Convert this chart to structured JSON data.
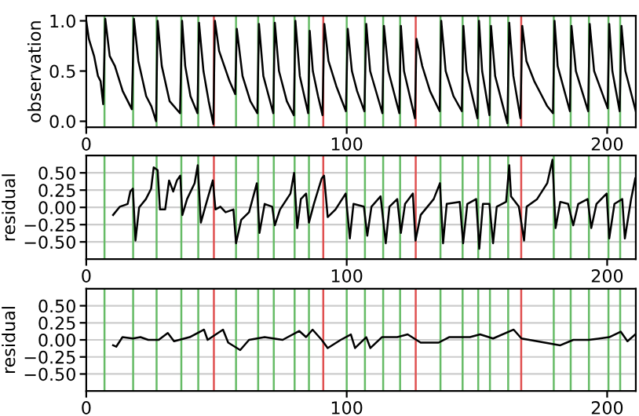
{
  "chart_data": [
    {
      "type": "line",
      "ylabel": "observation",
      "grid": false,
      "marker": "none",
      "line_style": "solid",
      "xlim": [
        0,
        211
      ],
      "xticks": [
        0,
        100,
        200
      ],
      "ylim": [
        -0.06,
        1.05
      ],
      "yticks": [
        {
          "value": 0,
          "label": "0.0"
        },
        {
          "value": 0.5,
          "label": "0.5"
        },
        {
          "value": 1,
          "label": "1.0"
        }
      ],
      "series": [
        {
          "color": "#000000",
          "x": [
            0,
            1,
            3,
            4.5,
            5.5,
            6.5,
            7.3,
            9,
            11,
            14,
            17.5,
            18.3,
            20,
            23,
            25,
            26.8,
            27.4,
            29,
            32,
            36,
            36.8,
            38,
            40,
            42.7,
            43.3,
            45,
            47,
            48.8,
            49.4,
            51,
            53,
            55,
            57.2,
            57.8,
            60,
            63,
            65.7,
            66.3,
            68,
            71.8,
            72.4,
            74,
            77,
            79.7,
            80.3,
            82,
            85.2,
            85.8,
            87,
            89,
            90.7,
            91.4,
            93,
            96,
            99.7,
            100.4,
            102,
            104,
            106.8,
            107.5,
            109,
            113.7,
            114.3,
            116,
            120.2,
            120.8,
            122,
            126.2,
            126.8,
            129,
            132,
            135.7,
            136.3,
            138,
            141,
            144.2,
            144.8,
            146,
            150.2,
            150.8,
            152,
            154.8,
            155.4,
            157,
            161.7,
            162.4,
            164,
            166.7,
            167.4,
            169,
            172,
            175,
            177,
            179.2,
            179.8,
            181,
            185.7,
            186.3,
            188,
            192.7,
            193.3,
            195,
            200.2,
            200.8,
            202,
            204.8,
            205.5,
            207,
            211
          ],
          "values": [
            1.0,
            0.82,
            0.65,
            0.45,
            0.4,
            0.17,
            1.02,
            0.65,
            0.55,
            0.3,
            0.12,
            1.02,
            0.6,
            0.25,
            0.15,
            0.0,
            1.0,
            0.55,
            0.2,
            0.08,
            1.0,
            0.55,
            0.25,
            0.08,
            0.98,
            0.5,
            0.2,
            -0.03,
            1.0,
            0.7,
            0.55,
            0.4,
            0.27,
            0.92,
            0.45,
            0.2,
            0.08,
            0.97,
            0.45,
            0.08,
            0.98,
            0.5,
            0.2,
            0.06,
            1.0,
            0.45,
            0.08,
            0.9,
            0.5,
            0.25,
            0.06,
            0.97,
            0.6,
            0.35,
            0.1,
            0.92,
            0.5,
            0.3,
            0.1,
            0.97,
            0.5,
            0.08,
            0.95,
            0.5,
            0.08,
            0.95,
            0.5,
            0.03,
            0.82,
            0.55,
            0.3,
            0.1,
            1.0,
            0.5,
            0.25,
            0.1,
            0.95,
            0.5,
            0.03,
            1.0,
            0.5,
            0.06,
            0.95,
            0.45,
            -0.02,
            0.98,
            0.45,
            0.03,
            0.95,
            0.6,
            0.4,
            0.25,
            0.15,
            0.08,
            1.0,
            0.55,
            0.1,
            0.95,
            0.5,
            0.1,
            0.97,
            0.5,
            0.13,
            0.97,
            0.5,
            0.1,
            0.95,
            0.5,
            0.1
          ]
        }
      ],
      "ref_lines": [
        {
          "axis": "x",
          "value": 7,
          "color": "#66bb66"
        },
        {
          "axis": "x",
          "value": 18,
          "color": "#66bb66"
        },
        {
          "axis": "x",
          "value": 27,
          "color": "#66bb66"
        },
        {
          "axis": "x",
          "value": 36.5,
          "color": "#66bb66"
        },
        {
          "axis": "x",
          "value": 43,
          "color": "#66bb66"
        },
        {
          "axis": "x",
          "value": 49,
          "color": "#e05050"
        },
        {
          "axis": "x",
          "value": 57.5,
          "color": "#66bb66"
        },
        {
          "axis": "x",
          "value": 66,
          "color": "#66bb66"
        },
        {
          "axis": "x",
          "value": 72,
          "color": "#66bb66"
        },
        {
          "axis": "x",
          "value": 80,
          "color": "#66bb66"
        },
        {
          "axis": "x",
          "value": 85.5,
          "color": "#66bb66"
        },
        {
          "axis": "x",
          "value": 91,
          "color": "#e05050"
        },
        {
          "axis": "x",
          "value": 100,
          "color": "#66bb66"
        },
        {
          "axis": "x",
          "value": 107,
          "color": "#66bb66"
        },
        {
          "axis": "x",
          "value": 114,
          "color": "#66bb66"
        },
        {
          "axis": "x",
          "value": 120.5,
          "color": "#66bb66"
        },
        {
          "axis": "x",
          "value": 126.5,
          "color": "#e05050"
        },
        {
          "axis": "x",
          "value": 136,
          "color": "#66bb66"
        },
        {
          "axis": "x",
          "value": 144.5,
          "color": "#66bb66"
        },
        {
          "axis": "x",
          "value": 150.5,
          "color": "#66bb66"
        },
        {
          "axis": "x",
          "value": 155,
          "color": "#66bb66"
        },
        {
          "axis": "x",
          "value": 162,
          "color": "#66bb66"
        },
        {
          "axis": "x",
          "value": 167,
          "color": "#e05050"
        },
        {
          "axis": "x",
          "value": 179.5,
          "color": "#66bb66"
        },
        {
          "axis": "x",
          "value": 186,
          "color": "#66bb66"
        },
        {
          "axis": "x",
          "value": 193,
          "color": "#66bb66"
        },
        {
          "axis": "x",
          "value": 200.5,
          "color": "#66bb66"
        },
        {
          "axis": "x",
          "value": 205,
          "color": "#66bb66"
        }
      ]
    },
    {
      "type": "line",
      "ylabel": "residual",
      "grid": "y",
      "marker": "none",
      "line_style": "solid",
      "xlim": [
        0,
        211
      ],
      "xticks": [
        0,
        100,
        200
      ],
      "ylim": [
        -0.75,
        0.75
      ],
      "yticks": [
        {
          "value": 0.5,
          "label": "0.50"
        },
        {
          "value": 0.25,
          "label": "0.25"
        },
        {
          "value": 0,
          "label": "0.00"
        },
        {
          "value": -0.25,
          "label": "−0.25"
        },
        {
          "value": -0.5,
          "label": "−0.50"
        }
      ],
      "series": [
        {
          "color": "#000000",
          "x": [
            10.3,
            12.9,
            15.9,
            16.9,
            17.9,
            18.9,
            20.3,
            22.9,
            24.9,
            25.9,
            27.4,
            28.3,
            30.3,
            31.8,
            33.4,
            34.8,
            36.1,
            36.9,
            38.7,
            41.6,
            42.8,
            44,
            46,
            48.6,
            49.6,
            51.5,
            53.5,
            56.5,
            57.5,
            59.5,
            62.5,
            65.5,
            66.5,
            68.5,
            71.4,
            72.4,
            74.4,
            78.4,
            79.8,
            81,
            82.4,
            84.4,
            85.5,
            87.4,
            90.4,
            91.3,
            92.7,
            95.7,
            99.6,
            101.2,
            102.6,
            106.6,
            107.9,
            109.5,
            113,
            115,
            116.4,
            119.4,
            120.8,
            122.4,
            125.4,
            126.4,
            128.4,
            133.4,
            135.8,
            137,
            138.4,
            143.4,
            144.7,
            146.3,
            149.7,
            150.9,
            152.3,
            154.8,
            156.2,
            157.6,
            161.2,
            162.4,
            163.1,
            166.1,
            168.1,
            169.1,
            173.1,
            177,
            179,
            180.2,
            182,
            185,
            187,
            188.9,
            192.5,
            193.9,
            195.9,
            199.8,
            200.8,
            202.8,
            205.8,
            206.8,
            209.2,
            210.8
          ],
          "values": [
            -0.11,
            0.01,
            0.05,
            0.23,
            0.27,
            -0.48,
            0.0,
            0.12,
            0.27,
            0.58,
            0.54,
            -0.03,
            -0.03,
            0.39,
            0.23,
            0.39,
            0.46,
            -0.11,
            0.12,
            0.35,
            0.61,
            -0.22,
            0.05,
            0.39,
            -0.03,
            0.01,
            -0.07,
            -0.03,
            -0.52,
            -0.18,
            -0.07,
            0.35,
            -0.37,
            0.05,
            0.01,
            -0.26,
            -0.03,
            0.2,
            0.5,
            -0.3,
            0.12,
            0.2,
            -0.22,
            0.05,
            0.42,
            0.46,
            -0.14,
            -0.03,
            0.2,
            -0.45,
            0.05,
            0.01,
            -0.41,
            0.01,
            0.16,
            -0.52,
            0.01,
            0.12,
            -0.37,
            0.05,
            0.2,
            -0.48,
            -0.11,
            0.12,
            0.35,
            -0.52,
            0.05,
            0.08,
            -0.52,
            0.05,
            0.12,
            -0.6,
            0.05,
            0.05,
            -0.52,
            0.01,
            0.08,
            0.61,
            0.16,
            0.01,
            -0.48,
            0.01,
            0.12,
            0.35,
            0.69,
            -0.3,
            0.08,
            0.05,
            -0.26,
            0.05,
            0.12,
            -0.3,
            0.05,
            0.2,
            -0.45,
            0.05,
            0.12,
            -0.45,
            0.12,
            0.42
          ]
        }
      ],
      "ref_lines": [
        {
          "axis": "x",
          "value": 7,
          "color": "#66bb66"
        },
        {
          "axis": "x",
          "value": 18,
          "color": "#66bb66"
        },
        {
          "axis": "x",
          "value": 27,
          "color": "#66bb66"
        },
        {
          "axis": "x",
          "value": 36.5,
          "color": "#66bb66"
        },
        {
          "axis": "x",
          "value": 43,
          "color": "#66bb66"
        },
        {
          "axis": "x",
          "value": 49,
          "color": "#e05050"
        },
        {
          "axis": "x",
          "value": 57.5,
          "color": "#66bb66"
        },
        {
          "axis": "x",
          "value": 66,
          "color": "#66bb66"
        },
        {
          "axis": "x",
          "value": 72,
          "color": "#66bb66"
        },
        {
          "axis": "x",
          "value": 80,
          "color": "#66bb66"
        },
        {
          "axis": "x",
          "value": 85.5,
          "color": "#66bb66"
        },
        {
          "axis": "x",
          "value": 91,
          "color": "#e05050"
        },
        {
          "axis": "x",
          "value": 100,
          "color": "#66bb66"
        },
        {
          "axis": "x",
          "value": 107,
          "color": "#66bb66"
        },
        {
          "axis": "x",
          "value": 114,
          "color": "#66bb66"
        },
        {
          "axis": "x",
          "value": 120.5,
          "color": "#66bb66"
        },
        {
          "axis": "x",
          "value": 126.5,
          "color": "#e05050"
        },
        {
          "axis": "x",
          "value": 136,
          "color": "#66bb66"
        },
        {
          "axis": "x",
          "value": 144.5,
          "color": "#66bb66"
        },
        {
          "axis": "x",
          "value": 150.5,
          "color": "#66bb66"
        },
        {
          "axis": "x",
          "value": 155,
          "color": "#66bb66"
        },
        {
          "axis": "x",
          "value": 162,
          "color": "#66bb66"
        },
        {
          "axis": "x",
          "value": 167,
          "color": "#e05050"
        },
        {
          "axis": "x",
          "value": 179.5,
          "color": "#66bb66"
        },
        {
          "axis": "x",
          "value": 186,
          "color": "#66bb66"
        },
        {
          "axis": "x",
          "value": 193,
          "color": "#66bb66"
        },
        {
          "axis": "x",
          "value": 200.5,
          "color": "#66bb66"
        },
        {
          "axis": "x",
          "value": 205,
          "color": "#66bb66"
        }
      ]
    },
    {
      "type": "line",
      "ylabel": "residual",
      "grid": "y",
      "marker": "none",
      "line_style": "solid",
      "xlim": [
        0,
        211
      ],
      "xticks": [
        0,
        100,
        200
      ],
      "ylim": [
        -0.75,
        0.75
      ],
      "yticks": [
        {
          "value": 0.5,
          "label": "0.50"
        },
        {
          "value": 0.25,
          "label": "0.25"
        },
        {
          "value": 0,
          "label": "0.00"
        },
        {
          "value": -0.25,
          "label": "−0.25"
        },
        {
          "value": -0.5,
          "label": "−0.50"
        }
      ],
      "series": [
        {
          "color": "#000000",
          "x": [
            10.3,
            11.5,
            13.9,
            17.9,
            20.8,
            23.8,
            27.8,
            31.3,
            33.7,
            39.7,
            45.2,
            46.6,
            52.5,
            54.5,
            59.1,
            62.5,
            68.5,
            75.4,
            81.8,
            84.4,
            86.9,
            90.4,
            92.7,
            97.7,
            101.6,
            103.2,
            107.5,
            109.1,
            113.5,
            119.4,
            123.4,
            128.4,
            135.3,
            139.3,
            147.3,
            151.2,
            156.2,
            164.1,
            167.1,
            173.1,
            182,
            187,
            192.9,
            200.8,
            205.2,
            207.8,
            210.8
          ],
          "values": [
            -0.08,
            -0.1,
            0.04,
            0.02,
            0.04,
            0,
            0,
            0.1,
            -0.02,
            0.04,
            0.15,
            0,
            0.15,
            -0.04,
            -0.15,
            0,
            0.04,
            0,
            0.13,
            0.04,
            0.15,
            0,
            -0.12,
            0,
            0.08,
            -0.12,
            0.04,
            -0.12,
            0.04,
            0.04,
            0.08,
            -0.04,
            -0.04,
            0.04,
            0.04,
            0.08,
            0.02,
            0.15,
            0.02,
            -0.02,
            -0.08,
            0,
            0,
            0.04,
            0.12,
            -0.02,
            0.08
          ]
        }
      ],
      "ref_lines": [
        {
          "axis": "x",
          "value": 7,
          "color": "#66bb66"
        },
        {
          "axis": "x",
          "value": 18,
          "color": "#66bb66"
        },
        {
          "axis": "x",
          "value": 27,
          "color": "#66bb66"
        },
        {
          "axis": "x",
          "value": 36.5,
          "color": "#66bb66"
        },
        {
          "axis": "x",
          "value": 43,
          "color": "#66bb66"
        },
        {
          "axis": "x",
          "value": 49,
          "color": "#e05050"
        },
        {
          "axis": "x",
          "value": 57.5,
          "color": "#66bb66"
        },
        {
          "axis": "x",
          "value": 66,
          "color": "#66bb66"
        },
        {
          "axis": "x",
          "value": 72,
          "color": "#66bb66"
        },
        {
          "axis": "x",
          "value": 80,
          "color": "#66bb66"
        },
        {
          "axis": "x",
          "value": 85.5,
          "color": "#66bb66"
        },
        {
          "axis": "x",
          "value": 91,
          "color": "#e05050"
        },
        {
          "axis": "x",
          "value": 100,
          "color": "#66bb66"
        },
        {
          "axis": "x",
          "value": 107,
          "color": "#66bb66"
        },
        {
          "axis": "x",
          "value": 114,
          "color": "#66bb66"
        },
        {
          "axis": "x",
          "value": 120.5,
          "color": "#66bb66"
        },
        {
          "axis": "x",
          "value": 126.5,
          "color": "#e05050"
        },
        {
          "axis": "x",
          "value": 136,
          "color": "#66bb66"
        },
        {
          "axis": "x",
          "value": 144.5,
          "color": "#66bb66"
        },
        {
          "axis": "x",
          "value": 150.5,
          "color": "#66bb66"
        },
        {
          "axis": "x",
          "value": 155,
          "color": "#66bb66"
        },
        {
          "axis": "x",
          "value": 162,
          "color": "#66bb66"
        },
        {
          "axis": "x",
          "value": 167,
          "color": "#e05050"
        },
        {
          "axis": "x",
          "value": 179.5,
          "color": "#66bb66"
        },
        {
          "axis": "x",
          "value": 186,
          "color": "#66bb66"
        },
        {
          "axis": "x",
          "value": 193,
          "color": "#66bb66"
        },
        {
          "axis": "x",
          "value": 200.5,
          "color": "#66bb66"
        },
        {
          "axis": "x",
          "value": 205,
          "color": "#66bb66"
        }
      ]
    }
  ]
}
